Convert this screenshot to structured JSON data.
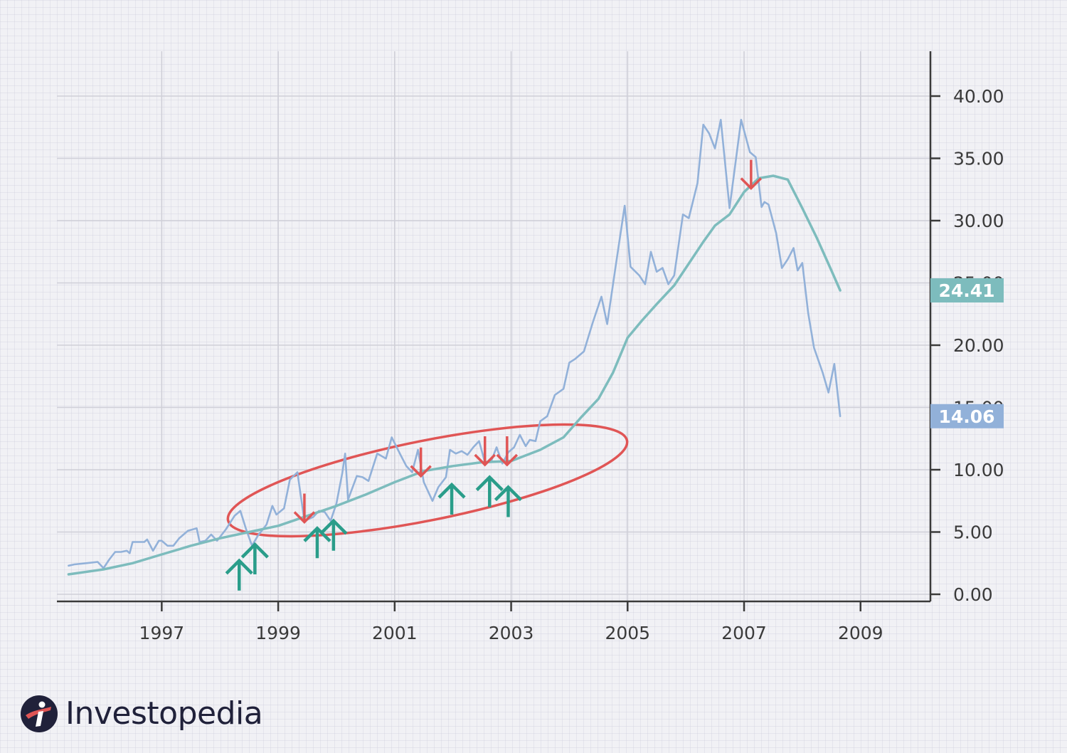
{
  "chart_data": {
    "type": "line",
    "title": "",
    "xlabel": "",
    "ylabel": "",
    "xlim": [
      1995.2,
      2010.2
    ],
    "ylim": [
      0,
      40
    ],
    "x_ticks": [
      1997,
      1999,
      2001,
      2003,
      2005,
      2007,
      2009
    ],
    "x_tick_labels": [
      "1997",
      "1999",
      "2001",
      "2003",
      "2005",
      "2007",
      "2009"
    ],
    "y_ticks": [
      0,
      5,
      10,
      15,
      20,
      25,
      30,
      35,
      40
    ],
    "y_tick_labels": [
      "0.00",
      "5.00",
      "10.00",
      "15.00",
      "20.00",
      "25.00",
      "30.00",
      "35.00",
      "40.00"
    ],
    "grid": true,
    "axis_position": "right",
    "series": [
      {
        "role": "price",
        "color": "#92b1d9",
        "last_value_label": "14.06",
        "points": [
          [
            1995.4,
            2.3
          ],
          [
            1995.5,
            2.4
          ],
          [
            1995.7,
            2.5
          ],
          [
            1995.9,
            2.6
          ],
          [
            1996.0,
            2.1
          ],
          [
            1996.1,
            2.8
          ],
          [
            1996.2,
            3.4
          ],
          [
            1996.3,
            3.4
          ],
          [
            1996.4,
            3.5
          ],
          [
            1996.45,
            3.3
          ],
          [
            1996.5,
            4.2
          ],
          [
            1996.6,
            4.2
          ],
          [
            1996.7,
            4.2
          ],
          [
            1996.75,
            4.4
          ],
          [
            1996.85,
            3.5
          ],
          [
            1996.95,
            4.3
          ],
          [
            1997.0,
            4.3
          ],
          [
            1997.1,
            3.9
          ],
          [
            1997.2,
            3.9
          ],
          [
            1997.3,
            4.5
          ],
          [
            1997.45,
            5.1
          ],
          [
            1997.6,
            5.3
          ],
          [
            1997.65,
            4.2
          ],
          [
            1997.75,
            4.3
          ],
          [
            1997.85,
            4.8
          ],
          [
            1997.95,
            4.3
          ],
          [
            1998.1,
            5.2
          ],
          [
            1998.25,
            6.3
          ],
          [
            1998.35,
            6.7
          ],
          [
            1998.45,
            5.2
          ],
          [
            1998.55,
            3.9
          ],
          [
            1998.65,
            4.7
          ],
          [
            1998.8,
            5.6
          ],
          [
            1998.9,
            7.1
          ],
          [
            1998.97,
            6.4
          ],
          [
            1999.1,
            6.9
          ],
          [
            1999.2,
            9.2
          ],
          [
            1999.33,
            9.8
          ],
          [
            1999.45,
            5.9
          ],
          [
            1999.6,
            6.2
          ],
          [
            1999.7,
            6.7
          ],
          [
            1999.8,
            6.6
          ],
          [
            1999.9,
            5.9
          ],
          [
            2000.0,
            7.3
          ],
          [
            2000.1,
            9.7
          ],
          [
            2000.15,
            11.3
          ],
          [
            2000.2,
            7.6
          ],
          [
            2000.35,
            9.5
          ],
          [
            2000.45,
            9.4
          ],
          [
            2000.55,
            9.1
          ],
          [
            2000.7,
            11.3
          ],
          [
            2000.85,
            10.9
          ],
          [
            2000.95,
            12.6
          ],
          [
            2001.1,
            11.2
          ],
          [
            2001.2,
            10.3
          ],
          [
            2001.3,
            9.8
          ],
          [
            2001.4,
            11.6
          ],
          [
            2001.5,
            9.0
          ],
          [
            2001.65,
            7.5
          ],
          [
            2001.75,
            8.6
          ],
          [
            2001.88,
            9.4
          ],
          [
            2001.95,
            11.6
          ],
          [
            2002.05,
            11.3
          ],
          [
            2002.15,
            11.5
          ],
          [
            2002.25,
            11.2
          ],
          [
            2002.35,
            11.8
          ],
          [
            2002.45,
            12.3
          ],
          [
            2002.55,
            10.6
          ],
          [
            2002.65,
            10.6
          ],
          [
            2002.75,
            11.8
          ],
          [
            2002.85,
            10.5
          ],
          [
            2002.95,
            11.4
          ],
          [
            2003.05,
            11.8
          ],
          [
            2003.15,
            12.8
          ],
          [
            2003.25,
            11.9
          ],
          [
            2003.32,
            12.4
          ],
          [
            2003.42,
            12.3
          ],
          [
            2003.5,
            13.9
          ],
          [
            2003.62,
            14.3
          ],
          [
            2003.75,
            16.0
          ],
          [
            2003.9,
            16.5
          ],
          [
            2004.0,
            18.6
          ],
          [
            2004.1,
            18.9
          ],
          [
            2004.25,
            19.5
          ],
          [
            2004.4,
            21.8
          ],
          [
            2004.55,
            23.9
          ],
          [
            2004.65,
            21.7
          ],
          [
            2004.8,
            26.5
          ],
          [
            2004.95,
            31.2
          ],
          [
            2005.05,
            26.3
          ],
          [
            2005.2,
            25.6
          ],
          [
            2005.3,
            24.9
          ],
          [
            2005.4,
            27.5
          ],
          [
            2005.5,
            25.9
          ],
          [
            2005.6,
            26.2
          ],
          [
            2005.7,
            24.9
          ],
          [
            2005.8,
            25.6
          ],
          [
            2005.95,
            30.5
          ],
          [
            2006.05,
            30.2
          ],
          [
            2006.2,
            33.0
          ],
          [
            2006.3,
            37.7
          ],
          [
            2006.4,
            37.0
          ],
          [
            2006.5,
            35.8
          ],
          [
            2006.6,
            38.1
          ],
          [
            2006.75,
            31.0
          ],
          [
            2006.95,
            38.1
          ],
          [
            2007.1,
            35.5
          ],
          [
            2007.2,
            35.1
          ],
          [
            2007.3,
            31.1
          ],
          [
            2007.35,
            31.5
          ],
          [
            2007.42,
            31.3
          ],
          [
            2007.55,
            29.0
          ],
          [
            2007.65,
            26.2
          ],
          [
            2007.75,
            26.9
          ],
          [
            2007.85,
            27.8
          ],
          [
            2007.92,
            26.0
          ],
          [
            2008.0,
            26.6
          ],
          [
            2008.1,
            22.6
          ],
          [
            2008.2,
            19.8
          ],
          [
            2008.35,
            17.8
          ],
          [
            2008.45,
            16.2
          ],
          [
            2008.55,
            18.5
          ],
          [
            2008.65,
            14.3
          ]
        ]
      },
      {
        "role": "moving-average",
        "color": "#7dbcbd",
        "last_value_label": "24.41",
        "points": [
          [
            1995.4,
            1.6
          ],
          [
            1996.0,
            2.0
          ],
          [
            1996.5,
            2.5
          ],
          [
            1997.0,
            3.2
          ],
          [
            1997.5,
            3.9
          ],
          [
            1998.0,
            4.5
          ],
          [
            1998.5,
            5.0
          ],
          [
            1999.0,
            5.5
          ],
          [
            1999.5,
            6.3
          ],
          [
            2000.0,
            7.1
          ],
          [
            2000.5,
            8.0
          ],
          [
            2001.0,
            9.0
          ],
          [
            2001.5,
            9.9
          ],
          [
            2002.0,
            10.3
          ],
          [
            2002.5,
            10.6
          ],
          [
            2003.0,
            10.7
          ],
          [
            2003.5,
            11.6
          ],
          [
            2003.9,
            12.6
          ],
          [
            2004.2,
            14.2
          ],
          [
            2004.5,
            15.7
          ],
          [
            2004.75,
            17.8
          ],
          [
            2005.0,
            20.6
          ],
          [
            2005.25,
            22.0
          ],
          [
            2005.5,
            23.3
          ],
          [
            2005.8,
            24.8
          ],
          [
            2006.0,
            26.2
          ],
          [
            2006.3,
            28.3
          ],
          [
            2006.5,
            29.6
          ],
          [
            2006.75,
            30.5
          ],
          [
            2007.0,
            32.3
          ],
          [
            2007.25,
            33.4
          ],
          [
            2007.5,
            33.6
          ],
          [
            2007.75,
            33.3
          ],
          [
            2008.0,
            31.0
          ],
          [
            2008.25,
            28.6
          ],
          [
            2008.5,
            26.0
          ],
          [
            2008.65,
            24.4
          ]
        ]
      }
    ],
    "annotations": {
      "ellipse_color": "#e05555",
      "sell_arrow_color": "#e05555",
      "buy_arrow_color": "#2a9d8a",
      "sell_arrows": [
        {
          "x": 1999.45,
          "y": 5.8
        },
        {
          "x": 2001.45,
          "y": 9.5
        },
        {
          "x": 2002.55,
          "y": 10.4
        },
        {
          "x": 2002.93,
          "y": 10.4
        },
        {
          "x": 2007.12,
          "y": 32.6
        }
      ],
      "buy_arrows": [
        {
          "x": 1998.33,
          "y": 2.7
        },
        {
          "x": 1998.6,
          "y": 4.0
        },
        {
          "x": 1999.67,
          "y": 5.3
        },
        {
          "x": 1999.95,
          "y": 5.9
        },
        {
          "x": 2001.98,
          "y": 8.8
        },
        {
          "x": 2002.63,
          "y": 9.4
        },
        {
          "x": 2002.95,
          "y": 8.6
        }
      ]
    }
  },
  "brand": {
    "name": "Investopedia",
    "logo_icon": "investopedia-logo-icon",
    "colors": {
      "dark": "#20213a",
      "accent": "#e05555"
    }
  },
  "colors": {
    "axis": "#3a3a3a",
    "grid_major": "#cfcfd8",
    "price_badge": "#92b1d9",
    "ma_badge": "#7dbcbd"
  }
}
